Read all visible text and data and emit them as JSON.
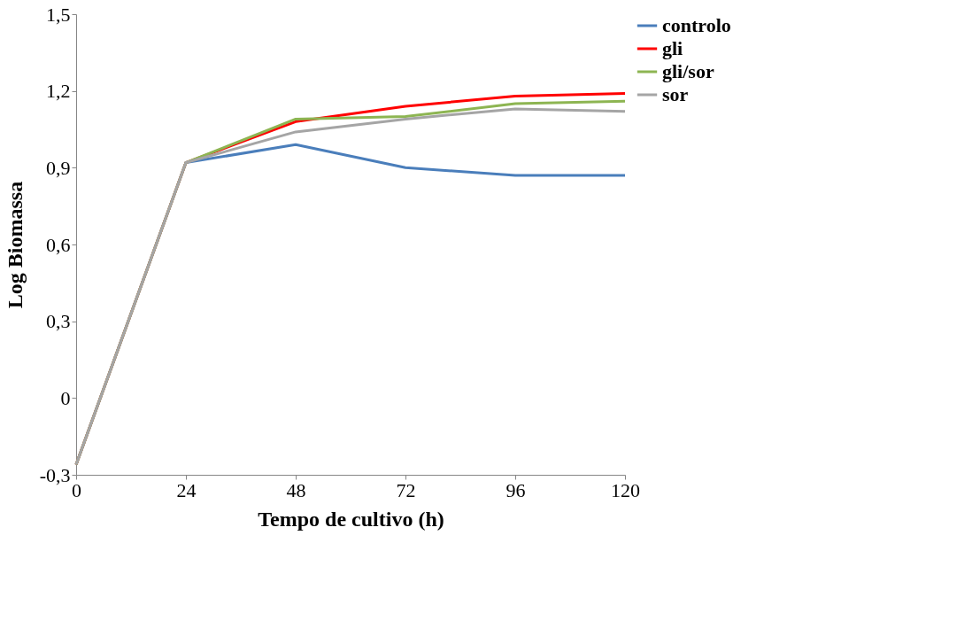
{
  "chart_data": {
    "type": "line",
    "xlabel": "Tempo de cultivo (h)",
    "ylabel": "Log Biomassa",
    "x": [
      0,
      24,
      48,
      72,
      96,
      120
    ],
    "series": [
      {
        "name": "controlo",
        "color": "#4a7ebb",
        "values": [
          -0.26,
          0.92,
          0.99,
          0.9,
          0.87,
          0.87
        ]
      },
      {
        "name": "gli",
        "color": "#ff0000",
        "values": [
          -0.26,
          0.92,
          1.08,
          1.14,
          1.18,
          1.19
        ]
      },
      {
        "name": "gli/sor",
        "color": "#8db552",
        "values": [
          -0.26,
          0.92,
          1.09,
          1.1,
          1.15,
          1.16
        ]
      },
      {
        "name": "sor",
        "color": "#a5a5a5",
        "values": [
          -0.26,
          0.92,
          1.04,
          1.09,
          1.13,
          1.12
        ]
      }
    ],
    "xlim": [
      0,
      120
    ],
    "xticks": [
      0,
      24,
      48,
      72,
      96,
      120
    ],
    "ylim": [
      -0.3,
      1.5
    ],
    "yticks": [
      {
        "value": -0.3,
        "label": "-0,3"
      },
      0,
      {
        "value": 0.3,
        "label": "0,3"
      },
      {
        "value": 0.6,
        "label": "0,6"
      },
      {
        "value": 0.9,
        "label": "0,9"
      },
      {
        "value": 1.2,
        "label": "1,2"
      },
      {
        "value": 1.5,
        "label": "1,5"
      }
    ],
    "legend": "right",
    "grid": false,
    "marker": "none",
    "line_style": "solid"
  }
}
